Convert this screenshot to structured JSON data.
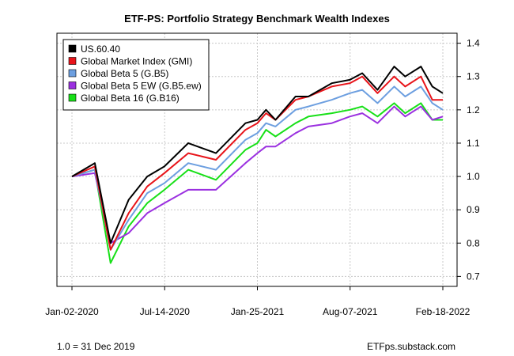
{
  "chart_data": {
    "type": "line",
    "title": "ETF-PS: Portfolio Strategy Benchmark Wealth Indexes",
    "footnote_left": "1.0 = 31 Dec 2019",
    "footnote_right": "ETFps.substack.com",
    "x_ticks": [
      "Jan-02-2020",
      "Jul-14-2020",
      "Jan-25-2021",
      "Aug-07-2021",
      "Feb-18-2022"
    ],
    "x_range": [
      "2020-01-02",
      "2022-02-18"
    ],
    "y_ticks": [
      0.7,
      0.8,
      0.9,
      1.0,
      1.1,
      1.2,
      1.3,
      1.4
    ],
    "ylim": [
      0.67,
      1.43
    ],
    "y_axis_side": "right",
    "grid": true,
    "legend_position": "top-left",
    "x": [
      "2020-01-02",
      "2020-02-19",
      "2020-03-23",
      "2020-04-30",
      "2020-06-08",
      "2020-07-14",
      "2020-09-02",
      "2020-10-30",
      "2020-12-31",
      "2021-01-25",
      "2021-02-12",
      "2021-03-04",
      "2021-04-15",
      "2021-05-12",
      "2021-06-30",
      "2021-08-07",
      "2021-09-02",
      "2021-10-04",
      "2021-11-08",
      "2021-12-01",
      "2022-01-03",
      "2022-01-27",
      "2022-02-18"
    ],
    "series": [
      {
        "name": "US.60.40",
        "color": "#000000",
        "values": [
          1.0,
          1.04,
          0.8,
          0.93,
          1.0,
          1.03,
          1.1,
          1.07,
          1.16,
          1.17,
          1.2,
          1.17,
          1.24,
          1.24,
          1.28,
          1.29,
          1.31,
          1.26,
          1.33,
          1.3,
          1.33,
          1.27,
          1.25
        ]
      },
      {
        "name": "Global Market Index (GMI)",
        "color": "#e8141a",
        "values": [
          1.0,
          1.03,
          0.78,
          0.89,
          0.97,
          1.01,
          1.07,
          1.05,
          1.14,
          1.16,
          1.19,
          1.17,
          1.23,
          1.24,
          1.27,
          1.28,
          1.3,
          1.25,
          1.3,
          1.27,
          1.3,
          1.23,
          1.23
        ]
      },
      {
        "name": "Global Beta 5 (G.B5)",
        "color": "#6d9fe0",
        "values": [
          1.0,
          1.02,
          0.78,
          0.87,
          0.95,
          0.98,
          1.04,
          1.02,
          1.11,
          1.13,
          1.16,
          1.15,
          1.2,
          1.21,
          1.23,
          1.25,
          1.26,
          1.22,
          1.27,
          1.24,
          1.27,
          1.22,
          1.2
        ]
      },
      {
        "name": "Global Beta 5 EW (G.B5.ew)",
        "color": "#9b30e0",
        "values": [
          1.0,
          1.01,
          0.8,
          0.83,
          0.89,
          0.92,
          0.96,
          0.96,
          1.04,
          1.07,
          1.09,
          1.09,
          1.13,
          1.15,
          1.16,
          1.18,
          1.19,
          1.16,
          1.21,
          1.18,
          1.21,
          1.17,
          1.18
        ]
      },
      {
        "name": "Global Beta 16 (G.B16)",
        "color": "#18e018",
        "values": [
          1.0,
          1.02,
          0.74,
          0.85,
          0.92,
          0.96,
          1.02,
          0.99,
          1.08,
          1.1,
          1.14,
          1.12,
          1.16,
          1.18,
          1.19,
          1.2,
          1.21,
          1.18,
          1.22,
          1.19,
          1.22,
          1.17,
          1.17
        ]
      }
    ]
  }
}
